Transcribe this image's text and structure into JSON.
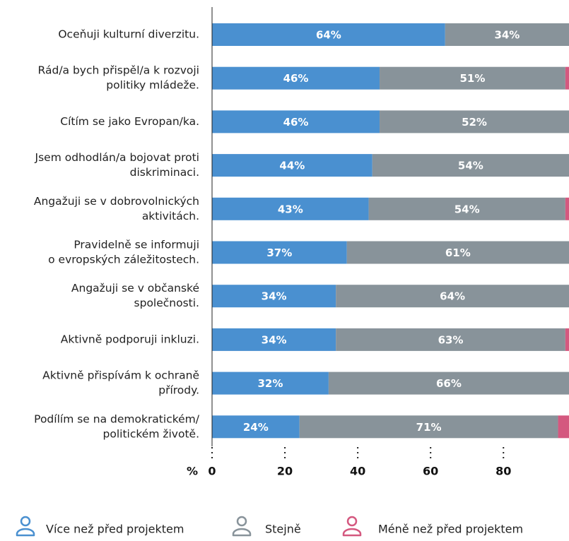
{
  "chart_data": {
    "type": "stacked-barh",
    "categories": [
      [
        "Oceňuji kulturní diverzitu."
      ],
      [
        "Rád/a bych přispěl/a k rozvoji",
        "politiky mládeže."
      ],
      [
        "Cítím se jako Evropan/ka."
      ],
      [
        "Jsem odhodlán/a bojovat proti",
        "diskriminaci."
      ],
      [
        "Angažuji se v dobrovolnických",
        "aktivitách."
      ],
      [
        "Pravidelně se informuji",
        "o evropských záležitostech."
      ],
      [
        "Angažuji se v občanské",
        "společnosti."
      ],
      [
        "Aktivně podporuji inkluzi."
      ],
      [
        "Aktivně přispívám k ochraně",
        "přírody."
      ],
      [
        "Podílím se na demokratickém/",
        "politickém životě."
      ]
    ],
    "series": [
      {
        "name": "Více než před projektem",
        "color": "#4a90d0",
        "values": [
          64,
          46,
          46,
          44,
          43,
          37,
          34,
          34,
          32,
          24
        ],
        "value_labels": [
          "64%",
          "46%",
          "46%",
          "44%",
          "43%",
          "37%",
          "34%",
          "34%",
          "32%",
          "24%"
        ]
      },
      {
        "name": "Stejně",
        "color": "#88939a",
        "values": [
          34,
          51,
          52,
          54,
          54,
          61,
          64,
          63,
          66,
          71
        ],
        "value_labels": [
          "34%",
          "51%",
          "52%",
          "54%",
          "54%",
          "61%",
          "64%",
          "63%",
          "66%",
          "71%"
        ]
      },
      {
        "name": "Méně než před projektem",
        "color": "#d4587f",
        "values": [
          2,
          3,
          2,
          2,
          3,
          2,
          2,
          3,
          2,
          5
        ]
      }
    ],
    "xlabel": "%",
    "xlim": [
      0,
      98
    ],
    "xticks": [
      0,
      20,
      40,
      60,
      80
    ]
  }
}
